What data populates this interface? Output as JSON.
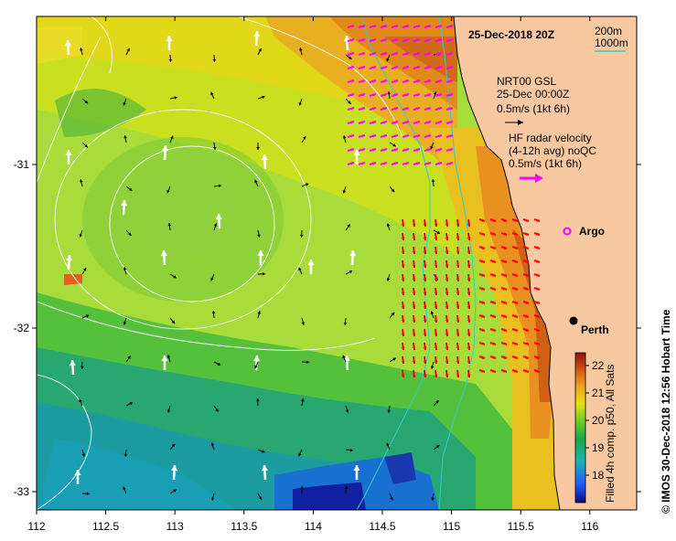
{
  "title": "25-Dec-2018 20Z",
  "bathymetry_legend": [
    "200m",
    "1000m"
  ],
  "bathymetry_color": "#33cccc",
  "model_legend": {
    "line1": "NRT00 GSL",
    "line2": "25-Dec 00:00Z",
    "scale": "0.5m/s (1kt 6h)",
    "arrow_color": "#000000"
  },
  "radar_legend": {
    "line1": "HF radar velocity",
    "line2": "(4-12h avg) noQC",
    "scale": "0.5m/s (1kt 6h)",
    "arrow_color": "#ff00ff"
  },
  "argo_label": "Argo",
  "argo_color": "#ff00ff",
  "city": {
    "name": "Perth",
    "lon": 115.86,
    "lat": -31.95
  },
  "colorbar": {
    "ticks": [
      "22",
      "21",
      "20",
      "19",
      "18"
    ],
    "label": "Filled 4h comp. p50, All Sats"
  },
  "credit": "© IMOS 30-Dec-2018 12:56 Hobart Time",
  "axes": {
    "x_ticks": [
      "112",
      "112.5",
      "113",
      "113.5",
      "114",
      "114.5",
      "115",
      "115.5",
      "116"
    ],
    "y_ticks": [
      "-31",
      "-32",
      "-33"
    ],
    "lon_range": [
      112,
      116.3
    ],
    "lat_range": [
      -30.1,
      -33.1
    ]
  },
  "colors": {
    "land": "#f8c8a0",
    "coastline": "#000000",
    "radar_arrows": "#ff00ff",
    "radar_arrows_south": "#ff0000",
    "drifter_arrows": "#ffffff"
  }
}
